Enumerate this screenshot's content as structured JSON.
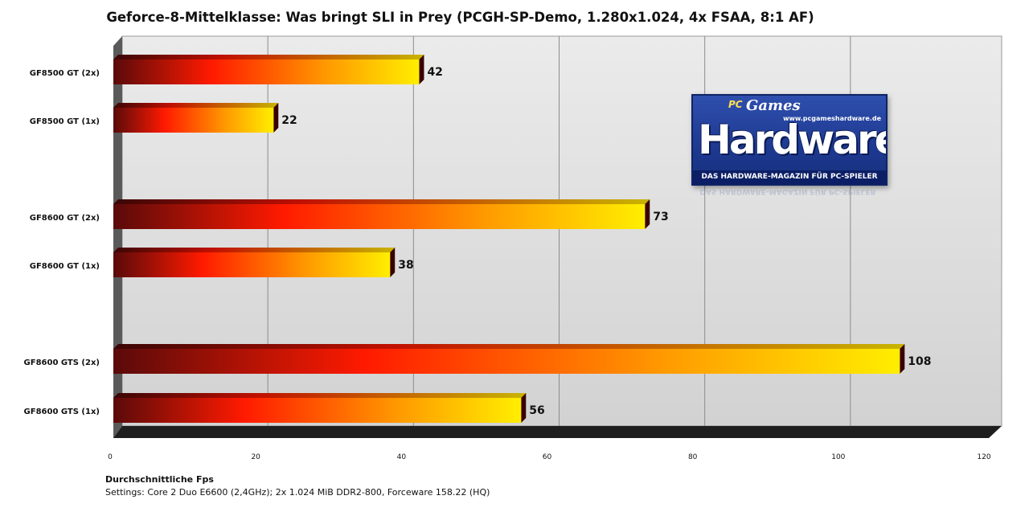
{
  "chart_data": {
    "type": "bar",
    "orientation": "horizontal",
    "title": "Geforce-8-Mittelklasse: Was bringt SLI in Prey (PCGH-SP-Demo, 1.280x1.024, 4x FSAA, 8:1 AF)",
    "categories": [
      "GF8500 GT (2x)",
      "GF8500 GT (1x)",
      "GF8600 GT (2x)",
      "GF8600 GT (1x)",
      "GF8600 GTS (2x)",
      "GF8600 GTS (1x)"
    ],
    "values": [
      42,
      22,
      73,
      38,
      108,
      56
    ],
    "value_labels": [
      "42",
      "22",
      "73",
      "38",
      "108",
      "56"
    ],
    "x_ticks": [
      "0",
      "20",
      "40",
      "60",
      "80",
      "100",
      "120"
    ],
    "xlim": [
      0,
      120
    ],
    "xlabel": "Durchschnittliche Fps",
    "note": "Settings:  Core 2 Duo E6600 (2,4GHz); 2x 1.024 MiB DDR2-800, Forceware 158.22 (HQ)",
    "grid": true,
    "legend": "none",
    "colors": {
      "bar_start": "#5a0a0a",
      "bar_mid": "#ff1a00",
      "bar_end": "#ffee00",
      "plot_bg": "#d9d9d9",
      "floor": "#202020"
    }
  },
  "logo": {
    "pc": "PC",
    "games": "Games",
    "url": "www.pcgameshardware.de",
    "main": "Hardware",
    "tagline": "DAS HARDWARE-MAGAZIN FÜR PC-SPIELER"
  }
}
